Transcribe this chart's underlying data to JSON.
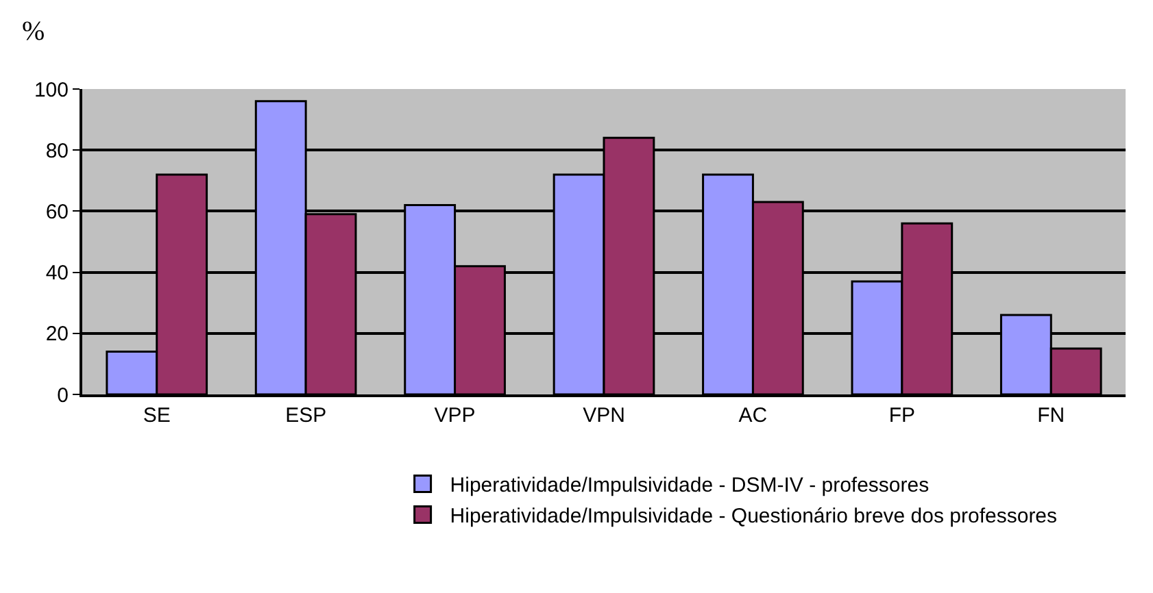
{
  "chart_data": {
    "type": "bar",
    "ylabel": "%",
    "categories": [
      "SE",
      "ESP",
      "VPP",
      "VPN",
      "AC",
      "FP",
      "FN"
    ],
    "series": [
      {
        "name": "Hiperatividade/Impulsividade - DSM-IV - professores",
        "color": "#9999ff",
        "values": [
          14,
          96,
          62,
          72,
          72,
          37,
          26
        ]
      },
      {
        "name": "Hiperatividade/Impulsividade - Questionário breve dos professores",
        "color": "#993366",
        "values": [
          72,
          59,
          42,
          84,
          63,
          56,
          15
        ]
      }
    ],
    "ylim": [
      0,
      100
    ],
    "yticks": [
      0,
      20,
      40,
      60,
      80,
      100
    ],
    "grid": "y",
    "legend": "bottom"
  }
}
